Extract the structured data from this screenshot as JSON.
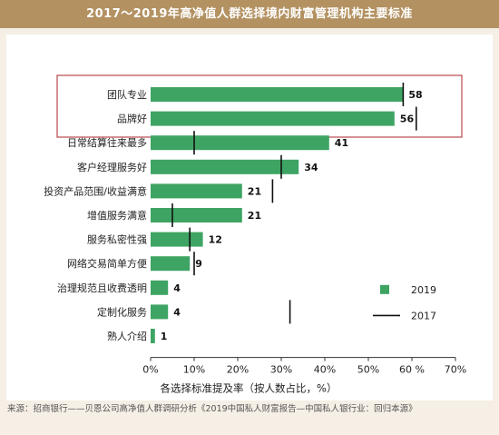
{
  "title": "2017～2019年高净值人群选择境内财富管理机构主要标准",
  "source": "来源：招商银行——贝恩公司高净值人群调研分析《2019中国私人财富报告—中国私人银行业：回归本源》",
  "colors": {
    "bar": "#3ea463",
    "title_bg": "#b39161",
    "highlight_box": "#b8484a",
    "marker": "#111111"
  },
  "chart_data": {
    "type": "bar",
    "orientation": "horizontal",
    "categories": [
      "团队专业",
      "品牌好",
      "日常结算往来最多",
      "客户经理服务好",
      "投资产品范围/收益满意",
      "增值服务满意",
      "服务私密性强",
      "网络交易简单方便",
      "治理规范且收费透明",
      "定制化服务",
      "熟人介绍"
    ],
    "series": [
      {
        "name": "2019",
        "values": [
          58,
          56,
          41,
          34,
          21,
          21,
          12,
          9,
          4,
          4,
          1
        ]
      },
      {
        "name": "2017",
        "values": [
          58,
          61,
          10,
          30,
          28,
          5,
          9,
          10,
          null,
          32,
          null
        ]
      }
    ],
    "data_labels": [
      "58",
      "56",
      "41",
      "34",
      "21",
      "21",
      "12",
      "9",
      "4",
      "4",
      "1"
    ],
    "xlabel": "各选择标准提及率（按人数占比，%）",
    "xlim": [
      0,
      70
    ],
    "xticks": [
      "0%",
      "10%",
      "20%",
      "30%",
      "40%",
      "50%",
      "60 %",
      "70%"
    ],
    "legend": {
      "position": "bottom-right",
      "items": [
        "2019",
        "2017"
      ]
    },
    "highlight": "团队专业, 品牌好",
    "grid": false
  }
}
